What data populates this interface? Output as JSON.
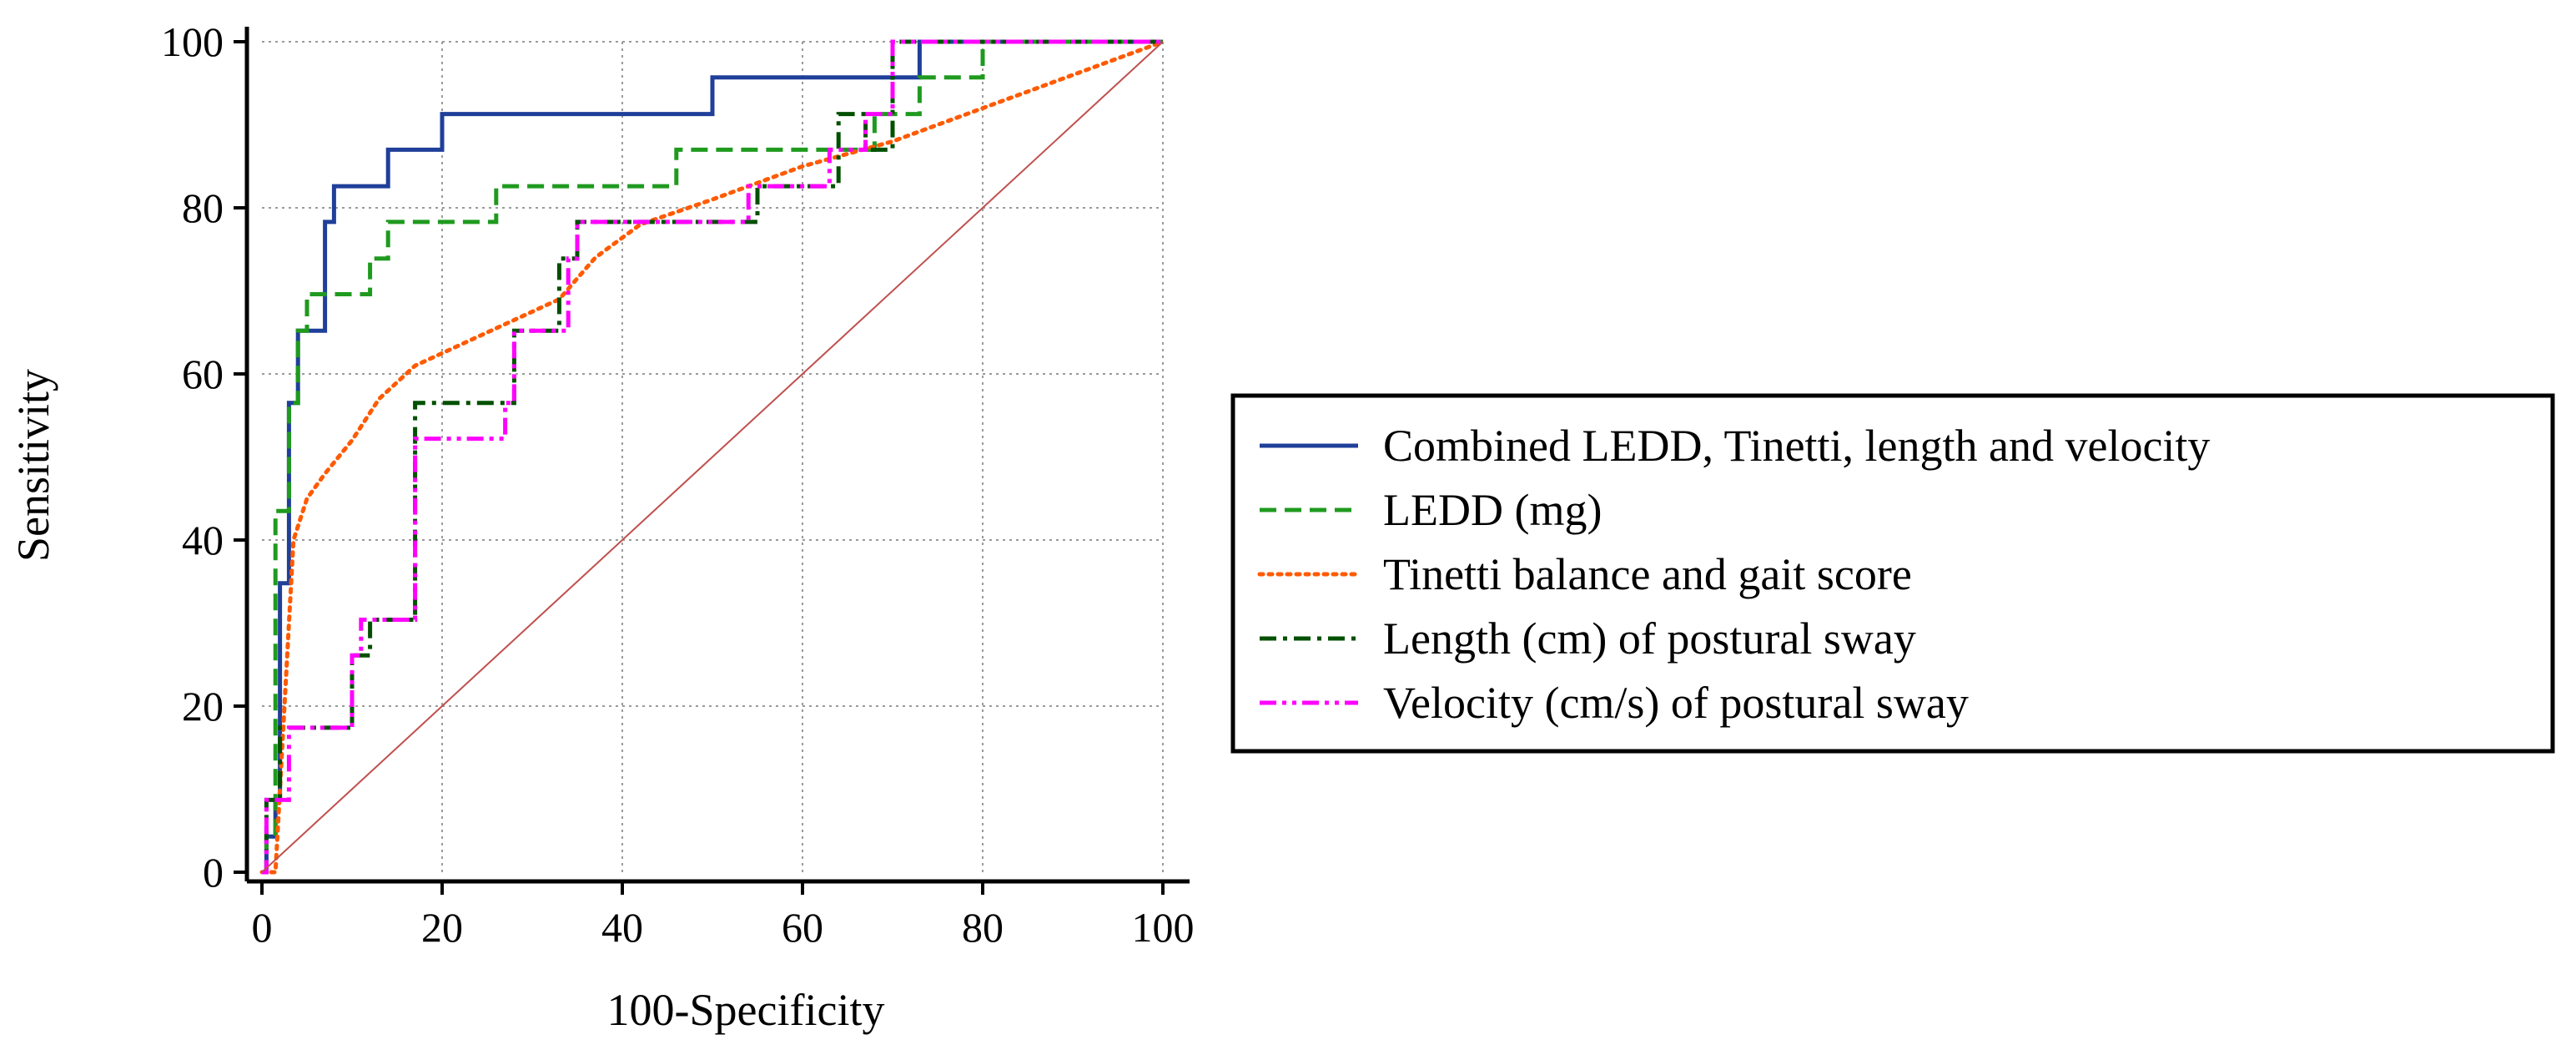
{
  "chart_data": {
    "type": "line",
    "title": "",
    "xlabel": "100-Specificity",
    "ylabel": "Sensitivity",
    "xlim": [
      0,
      100
    ],
    "ylim": [
      0,
      100
    ],
    "xticks": [
      0,
      20,
      40,
      60,
      80,
      100
    ],
    "yticks": [
      0,
      20,
      40,
      60,
      80,
      100
    ],
    "grid": true,
    "legend_position": "right",
    "series": [
      {
        "name": "Combined LEDD, Tinetti, length and velocity",
        "color": "#1f3f99",
        "style": "solid",
        "points": [
          [
            0,
            0
          ],
          [
            0.5,
            0
          ],
          [
            0.5,
            4.3
          ],
          [
            1.5,
            4.3
          ],
          [
            1.5,
            8.7
          ],
          [
            2,
            8.7
          ],
          [
            2,
            34.8
          ],
          [
            3,
            34.8
          ],
          [
            3,
            56.5
          ],
          [
            4,
            56.5
          ],
          [
            4,
            65.2
          ],
          [
            7,
            65.2
          ],
          [
            7,
            78.3
          ],
          [
            8,
            78.3
          ],
          [
            8,
            82.6
          ],
          [
            14,
            82.6
          ],
          [
            14,
            87
          ],
          [
            20,
            87
          ],
          [
            20,
            91.3
          ],
          [
            50,
            91.3
          ],
          [
            50,
            95.7
          ],
          [
            73,
            95.7
          ],
          [
            73,
            100
          ],
          [
            100,
            100
          ]
        ]
      },
      {
        "name": "LEDD (mg)",
        "color": "#1f9a1f",
        "style": "dashed",
        "points": [
          [
            0,
            0
          ],
          [
            0.5,
            0
          ],
          [
            0.5,
            4.3
          ],
          [
            1.5,
            4.3
          ],
          [
            1.5,
            43.5
          ],
          [
            3,
            43.5
          ],
          [
            3,
            56.5
          ],
          [
            4,
            56.5
          ],
          [
            4,
            65.2
          ],
          [
            5,
            65.2
          ],
          [
            5,
            69.6
          ],
          [
            12,
            69.6
          ],
          [
            12,
            73.9
          ],
          [
            14,
            73.9
          ],
          [
            14,
            78.3
          ],
          [
            26,
            78.3
          ],
          [
            26,
            82.6
          ],
          [
            46,
            82.6
          ],
          [
            46,
            87
          ],
          [
            68,
            87
          ],
          [
            68,
            91.3
          ],
          [
            73,
            91.3
          ],
          [
            73,
            95.7
          ],
          [
            80,
            95.7
          ],
          [
            80,
            100
          ],
          [
            100,
            100
          ]
        ]
      },
      {
        "name": "Tinetti balance and gait score",
        "color": "#ff5a00",
        "style": "dotted",
        "points": [
          [
            0,
            0
          ],
          [
            1.5,
            0
          ],
          [
            2,
            10
          ],
          [
            3,
            30
          ],
          [
            3.5,
            40
          ],
          [
            5,
            45
          ],
          [
            7,
            48
          ],
          [
            10,
            52
          ],
          [
            13,
            57
          ],
          [
            17,
            61
          ],
          [
            25,
            65
          ],
          [
            33,
            69
          ],
          [
            37,
            74
          ],
          [
            42,
            78
          ],
          [
            50,
            81
          ],
          [
            60,
            85
          ],
          [
            70,
            88
          ],
          [
            80,
            92
          ],
          [
            90,
            96
          ],
          [
            100,
            100
          ]
        ]
      },
      {
        "name": "Length (cm) of postural sway",
        "color": "#005000",
        "style": "dashdot",
        "points": [
          [
            0,
            0
          ],
          [
            0.5,
            0
          ],
          [
            0.5,
            8.7
          ],
          [
            2,
            8.7
          ],
          [
            2,
            17.4
          ],
          [
            10,
            17.4
          ],
          [
            10,
            26.1
          ],
          [
            12,
            26.1
          ],
          [
            12,
            30.4
          ],
          [
            17,
            30.4
          ],
          [
            17,
            56.5
          ],
          [
            28,
            56.5
          ],
          [
            28,
            65.2
          ],
          [
            33,
            65.2
          ],
          [
            33,
            73.9
          ],
          [
            35,
            73.9
          ],
          [
            35,
            78.3
          ],
          [
            55,
            78.3
          ],
          [
            55,
            82.6
          ],
          [
            64,
            82.6
          ],
          [
            64,
            91.3
          ],
          [
            67,
            91.3
          ],
          [
            67,
            87
          ],
          [
            70,
            87
          ],
          [
            70,
            100
          ],
          [
            100,
            100
          ]
        ]
      },
      {
        "name": "Velocity (cm/s) of postural sway",
        "color": "#ff00ff",
        "style": "dashdotdot",
        "points": [
          [
            0,
            0
          ],
          [
            0.5,
            0
          ],
          [
            0.5,
            8.7
          ],
          [
            3,
            8.7
          ],
          [
            3,
            17.4
          ],
          [
            10,
            17.4
          ],
          [
            10,
            26.1
          ],
          [
            11,
            26.1
          ],
          [
            11,
            30.4
          ],
          [
            17,
            30.4
          ],
          [
            17,
            52.2
          ],
          [
            27,
            52.2
          ],
          [
            27,
            56.5
          ],
          [
            28,
            56.5
          ],
          [
            28,
            65.2
          ],
          [
            34,
            65.2
          ],
          [
            34,
            73.9
          ],
          [
            35,
            73.9
          ],
          [
            35,
            78.3
          ],
          [
            54,
            78.3
          ],
          [
            54,
            82.6
          ],
          [
            63,
            82.6
          ],
          [
            63,
            87
          ],
          [
            67,
            87
          ],
          [
            67,
            91.3
          ],
          [
            70,
            91.3
          ],
          [
            70,
            100
          ],
          [
            100,
            100
          ]
        ]
      },
      {
        "name": "Reference line",
        "color": "#c0504d",
        "style": "thin",
        "points": [
          [
            0,
            0
          ],
          [
            100,
            100
          ]
        ]
      }
    ]
  }
}
